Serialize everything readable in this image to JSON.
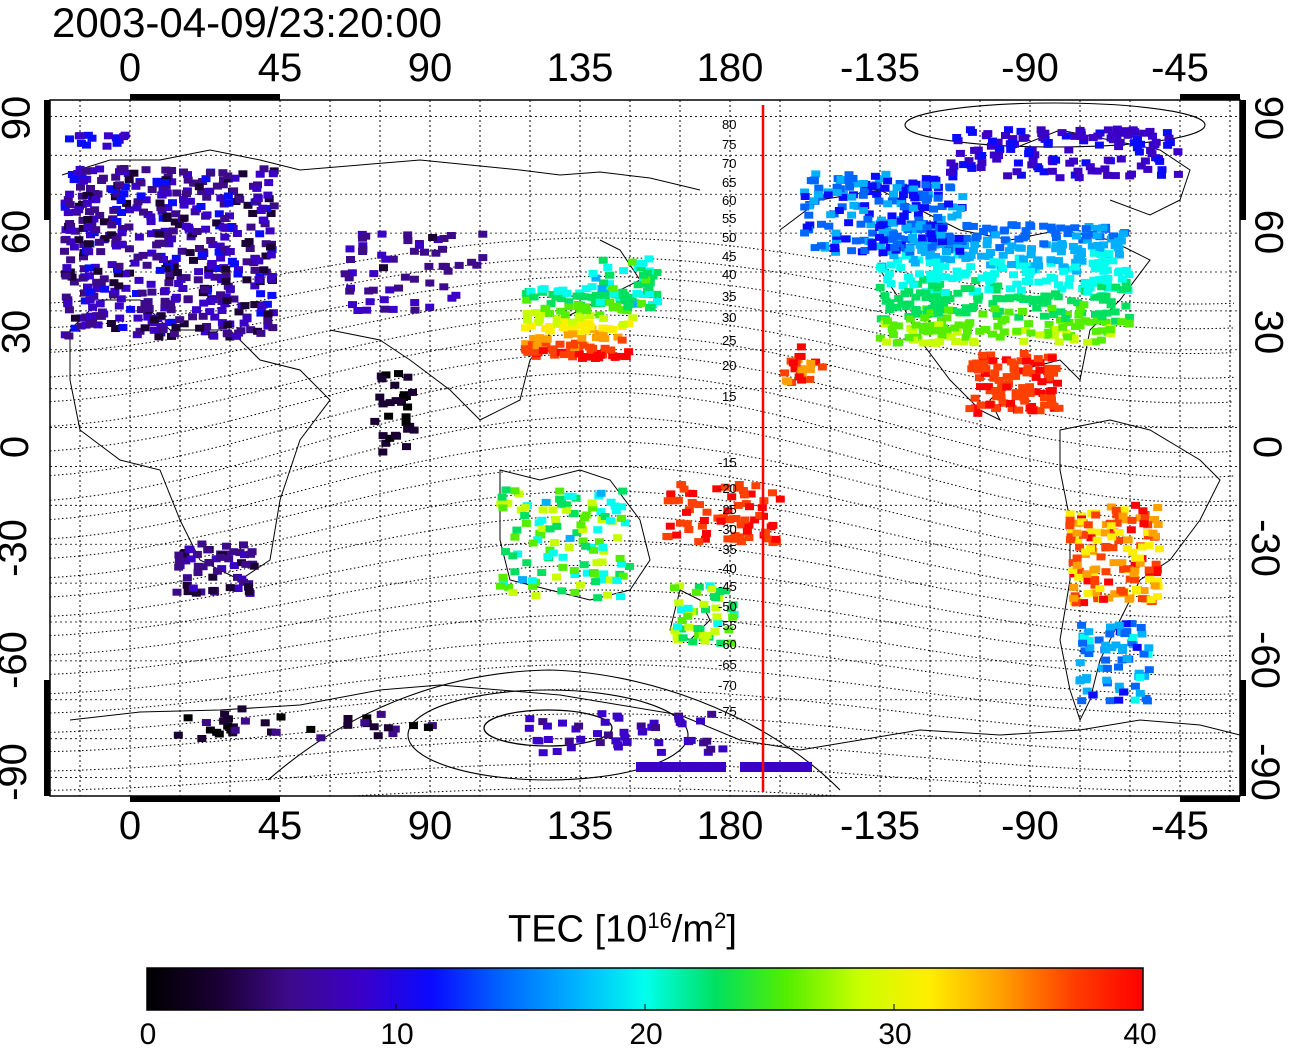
{
  "title": "2003-04-09/23:20:00",
  "x_axis": {
    "top_ticks": [
      "0",
      "45",
      "90",
      "135",
      "180",
      "-135",
      "-90",
      "-45"
    ],
    "bottom_ticks": [
      "0",
      "45",
      "90",
      "135",
      "180",
      "-135",
      "-90",
      "-45"
    ]
  },
  "y_axis": {
    "left_ticks": [
      "90",
      "60",
      "30",
      "0",
      "-30",
      "-60",
      "-90"
    ],
    "right_ticks": [
      "90",
      "60",
      "30",
      "0",
      "-30",
      "-60",
      "-90"
    ]
  },
  "contour_labels": [
    "80",
    "75",
    "70",
    "65",
    "60",
    "55",
    "50",
    "45",
    "40",
    "35",
    "30",
    "25",
    "20",
    "15",
    "-15",
    "-20",
    "-25",
    "-30",
    "-35",
    "-40",
    "-45",
    "-50",
    "-55",
    "-60",
    "-65",
    "-70",
    "-75"
  ],
  "colorbar": {
    "title_main": "TEC  [10",
    "title_sup": "16",
    "title_unit": "/m",
    "title_sup2": "2",
    "title_end": "]",
    "ticks": [
      "0",
      "10",
      "20",
      "30",
      "40"
    ],
    "colors": [
      "#000000",
      "#1a0033",
      "#3d0a8a",
      "#3b00c8",
      "#0a0aff",
      "#0066ff",
      "#00b0ff",
      "#00ffee",
      "#00e060",
      "#55ee00",
      "#c8ff00",
      "#ffee00",
      "#ffa000",
      "#ff4000",
      "#ff0000"
    ]
  },
  "colors": {
    "terminator": "#ff0000",
    "grid": "#000000"
  }
}
